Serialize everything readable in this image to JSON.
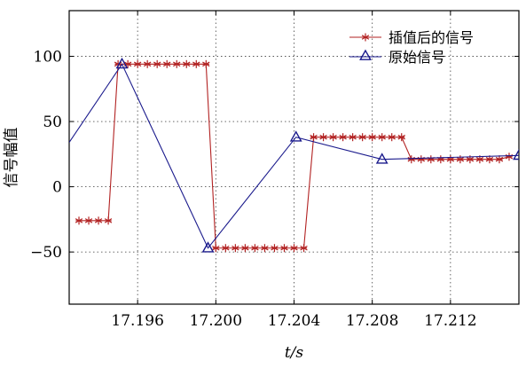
{
  "chart_data": {
    "type": "line",
    "title": "",
    "xlabel": "t/s",
    "ylabel": "信号幅值",
    "xlim": [
      17.1925,
      17.2155
    ],
    "ylim": [
      -90,
      135
    ],
    "x_ticks": [
      17.196,
      17.2,
      17.204,
      17.208,
      17.212
    ],
    "x_tick_labels": [
      "17.196",
      "17.200",
      "17.204",
      "17.208",
      "17.212"
    ],
    "y_ticks": [
      -50,
      0,
      50,
      100
    ],
    "y_tick_labels": [
      "−50",
      "0",
      "50",
      "100"
    ],
    "grid": true,
    "legend_position": "top-right",
    "series": [
      {
        "name": "插值后的信号",
        "color": "#b22222",
        "marker": "asterisk",
        "x": [
          17.193,
          17.1935,
          17.194,
          17.1945,
          17.195,
          17.1955,
          17.196,
          17.1965,
          17.197,
          17.1975,
          17.198,
          17.1985,
          17.199,
          17.1995,
          17.2,
          17.2005,
          17.201,
          17.2015,
          17.202,
          17.2025,
          17.203,
          17.2035,
          17.204,
          17.2045,
          17.205,
          17.2055,
          17.206,
          17.2065,
          17.207,
          17.2075,
          17.208,
          17.2085,
          17.209,
          17.2095,
          17.21,
          17.2105,
          17.211,
          17.2115,
          17.212,
          17.2125,
          17.213,
          17.2135,
          17.214,
          17.2145,
          17.215
        ],
        "values": [
          -26,
          -26,
          -26,
          -26,
          94,
          94,
          94,
          94,
          94,
          94,
          94,
          94,
          94,
          94,
          -47,
          -47,
          -47,
          -47,
          -47,
          -47,
          -47,
          -47,
          -47,
          -47,
          38,
          38,
          38,
          38,
          38,
          38,
          38,
          38,
          38,
          38,
          21,
          21,
          21,
          21,
          21,
          21,
          21,
          21,
          21,
          21,
          23
        ]
      },
      {
        "name": "原始信号",
        "color": "#1a1a8c",
        "marker": "triangle",
        "x": [
          17.1925,
          17.1952,
          17.1996,
          17.2041,
          17.2085,
          17.2155
        ],
        "values": [
          34,
          94,
          -47,
          38,
          21,
          24
        ],
        "marked": [
          false,
          true,
          true,
          true,
          true,
          true
        ]
      }
    ]
  }
}
